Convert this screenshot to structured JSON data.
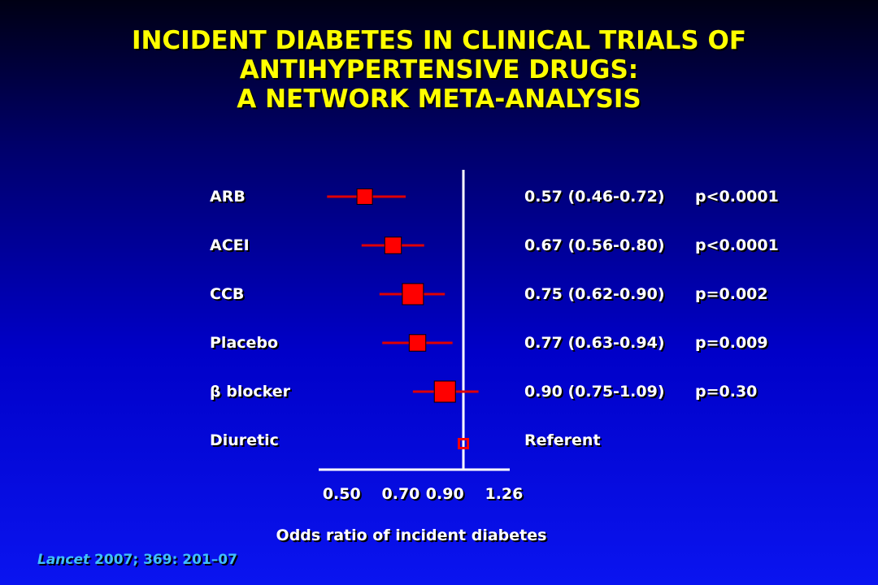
{
  "title_lines": [
    "INCIDENT DIABETES IN CLINICAL TRIALS OF",
    "ANTIHYPERTENSIVE DRUGS:",
    "A NETWORK META-ANALYSIS"
  ],
  "citation": {
    "journal": "Lancet",
    "rest": " 2007; 369: 201–07"
  },
  "chart_data": {
    "type": "forest",
    "xlabel": "Odds ratio of incident diabetes",
    "x_scale": "log",
    "xticks": [
      0.5,
      0.7,
      0.9,
      1.26
    ],
    "xtick_labels": [
      "0.50",
      "0.70",
      "0.90",
      "1.26"
    ],
    "reference_line": 1.0,
    "rows": [
      {
        "label": "ARB",
        "or": 0.57,
        "lo": 0.46,
        "hi": 0.72,
        "ci_text": "0.57 (0.46-0.72)",
        "p_text": "p<0.0001",
        "weight": 0.5
      },
      {
        "label": "ACEI",
        "or": 0.67,
        "lo": 0.56,
        "hi": 0.8,
        "ci_text": "0.67 (0.56-0.80)",
        "p_text": "p<0.0001",
        "weight": 0.6
      },
      {
        "label": "CCB",
        "or": 0.75,
        "lo": 0.62,
        "hi": 0.9,
        "ci_text": "0.75 (0.62-0.90)",
        "p_text": "p=0.002",
        "weight": 1.0
      },
      {
        "label": "Placebo",
        "or": 0.77,
        "lo": 0.63,
        "hi": 0.94,
        "ci_text": "0.77 (0.63-0.94)",
        "p_text": "p=0.009",
        "weight": 0.6
      },
      {
        "label": "β blocker",
        "or": 0.9,
        "lo": 0.75,
        "hi": 1.09,
        "ci_text": "0.90 (0.75-1.09)",
        "p_text": "p=0.30",
        "weight": 1.0
      },
      {
        "label": "Diuretic",
        "or": 1.0,
        "lo": null,
        "hi": null,
        "ci_text": "Referent",
        "p_text": "",
        "weight": 0.4,
        "referent": true
      }
    ],
    "colors": {
      "marker": "#ff0000",
      "ci_line": "#e00000",
      "axis": "#ffffff"
    }
  }
}
